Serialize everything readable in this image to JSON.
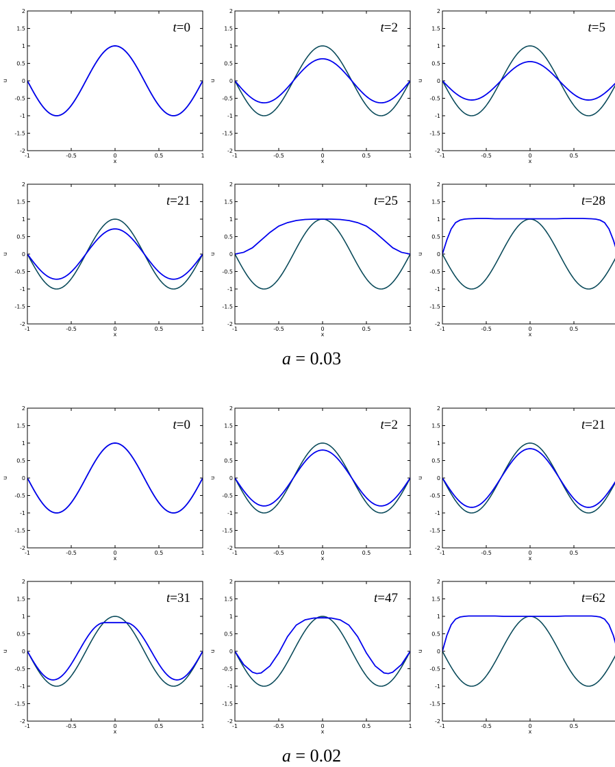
{
  "figure": {
    "groups": [
      {
        "caption_var": "a",
        "caption_value": "0.03"
      },
      {
        "caption_var": "a",
        "caption_value": "0.02"
      }
    ]
  },
  "chart_data": [
    {
      "type": "line",
      "group": 0,
      "time_label": "t=0",
      "xlabel": "x",
      "ylabel": "u",
      "xlim": [
        -1,
        1
      ],
      "ylim": [
        -2,
        2
      ],
      "xticks": [
        "-1",
        "-0.5",
        "0",
        "0.5",
        "1"
      ],
      "yticks": [
        "-2",
        "-1.5",
        "-1",
        "-0.5",
        "0",
        "0.5",
        "1",
        "1.5",
        "2"
      ],
      "series": [
        {
          "color": "#0a4a5a",
          "kind": "cosine",
          "amp": 1.0
        },
        {
          "color": "#0000ee",
          "kind": "cosine",
          "amp": 1.0
        }
      ]
    },
    {
      "type": "line",
      "group": 0,
      "time_label": "t=2",
      "xlabel": "x",
      "ylabel": "u",
      "xlim": [
        -1,
        1
      ],
      "ylim": [
        -2,
        2
      ],
      "xticks": [
        "-1",
        "-0.5",
        "0",
        "0.5",
        "1"
      ],
      "yticks": [
        "-2",
        "-1.5",
        "-1",
        "-0.5",
        "0",
        "0.5",
        "1",
        "1.5",
        "2"
      ],
      "series": [
        {
          "color": "#0a4a5a",
          "kind": "cosine",
          "amp": 1.0
        },
        {
          "color": "#0000ee",
          "kind": "cosine",
          "amp": 0.63
        }
      ]
    },
    {
      "type": "line",
      "group": 0,
      "time_label": "t=5",
      "xlabel": "x",
      "ylabel": "u",
      "xlim": [
        -1,
        1
      ],
      "ylim": [
        -2,
        2
      ],
      "xticks": [
        "-1",
        "-0.5",
        "0",
        "0.5",
        ""
      ],
      "yticks": [
        "-2",
        "-1.5",
        "-1",
        "-0.5",
        "0",
        "0.5",
        "1",
        "1.5",
        "2"
      ],
      "series": [
        {
          "color": "#0a4a5a",
          "kind": "cosine",
          "amp": 1.0
        },
        {
          "color": "#0000ee",
          "kind": "cosine",
          "amp": 0.55
        }
      ]
    },
    {
      "type": "line",
      "group": 0,
      "time_label": "t=21",
      "xlabel": "x",
      "ylabel": "u",
      "xlim": [
        -1,
        1
      ],
      "ylim": [
        -2,
        2
      ],
      "xticks": [
        "-1",
        "-0.5",
        "0",
        "0.5",
        "1"
      ],
      "yticks": [
        "-2",
        "-1.5",
        "-1",
        "-0.5",
        "0",
        "0.5",
        "1",
        "1.5",
        "2"
      ],
      "series": [
        {
          "color": "#0a4a5a",
          "kind": "cosine",
          "amp": 1.0
        },
        {
          "color": "#0000ee",
          "kind": "cosine",
          "amp": 0.72
        }
      ]
    },
    {
      "type": "line",
      "group": 0,
      "time_label": "t=25",
      "xlabel": "x",
      "ylabel": "u",
      "xlim": [
        -1,
        1
      ],
      "ylim": [
        -2,
        2
      ],
      "xticks": [
        "-1",
        "-0.5",
        "0",
        "0.5",
        "1"
      ],
      "yticks": [
        "-2",
        "-1.5",
        "-1",
        "-0.5",
        "0",
        "0.5",
        "1",
        "1.5",
        "2"
      ],
      "series": [
        {
          "color": "#0a4a5a",
          "kind": "cosine",
          "amp": 1.0
        },
        {
          "color": "#0000ee",
          "kind": "points",
          "x": [
            -1,
            -0.9,
            -0.8,
            -0.7,
            -0.6,
            -0.5,
            -0.4,
            -0.3,
            -0.2,
            -0.1,
            0,
            0.1,
            0.2,
            0.3,
            0.4,
            0.5,
            0.6,
            0.7,
            0.8,
            0.9,
            1
          ],
          "y": [
            0,
            0.05,
            0.18,
            0.4,
            0.62,
            0.8,
            0.9,
            0.96,
            0.99,
            1.0,
            1.0,
            1.0,
            0.99,
            0.96,
            0.9,
            0.8,
            0.62,
            0.4,
            0.18,
            0.05,
            0
          ]
        }
      ]
    },
    {
      "type": "line",
      "group": 0,
      "time_label": "t=28",
      "xlabel": "x",
      "ylabel": "u",
      "xlim": [
        -1,
        1
      ],
      "ylim": [
        -2,
        2
      ],
      "xticks": [
        "-1",
        "-0.5",
        "0",
        "0.5",
        ""
      ],
      "yticks": [
        "-2",
        "-1.5",
        "-1",
        "-0.5",
        "0",
        "0.5",
        "1",
        "1.5",
        "2"
      ],
      "series": [
        {
          "color": "#0a4a5a",
          "kind": "cosine",
          "amp": 1.0
        },
        {
          "color": "#0000ee",
          "kind": "points",
          "x": [
            -1,
            -0.95,
            -0.9,
            -0.85,
            -0.8,
            -0.75,
            -0.7,
            -0.6,
            -0.5,
            -0.4,
            -0.3,
            -0.2,
            -0.1,
            0,
            0.1,
            0.2,
            0.3,
            0.4,
            0.5,
            0.6,
            0.7,
            0.75,
            0.8,
            0.85,
            0.9,
            0.95,
            1
          ],
          "y": [
            0,
            0.4,
            0.72,
            0.9,
            0.97,
            1.0,
            1.01,
            1.02,
            1.02,
            1.01,
            1.01,
            1.01,
            1.01,
            1.01,
            1.01,
            1.01,
            1.01,
            1.02,
            1.02,
            1.02,
            1.01,
            1.0,
            0.97,
            0.9,
            0.72,
            0.4,
            0
          ]
        }
      ]
    },
    {
      "type": "line",
      "group": 1,
      "time_label": "t=0",
      "xlabel": "x",
      "ylabel": "u",
      "xlim": [
        -1,
        1
      ],
      "ylim": [
        -2,
        2
      ],
      "xticks": [
        "-1",
        "-0.5",
        "0",
        "0.5",
        "1"
      ],
      "yticks": [
        "-2",
        "-1.5",
        "-1",
        "-0.5",
        "0",
        "0.5",
        "1",
        "1.5",
        "2"
      ],
      "series": [
        {
          "color": "#0a4a5a",
          "kind": "cosine",
          "amp": 1.0
        },
        {
          "color": "#0000ee",
          "kind": "cosine",
          "amp": 1.0
        }
      ]
    },
    {
      "type": "line",
      "group": 1,
      "time_label": "t=2",
      "xlabel": "x",
      "ylabel": "u",
      "xlim": [
        -1,
        1
      ],
      "ylim": [
        -2,
        2
      ],
      "xticks": [
        "-1",
        "-0.5",
        "0",
        "0.5",
        "1"
      ],
      "yticks": [
        "-2",
        "-1.5",
        "-1",
        "-0.5",
        "0",
        "0.5",
        "1",
        "1.5",
        "2"
      ],
      "series": [
        {
          "color": "#0a4a5a",
          "kind": "cosine",
          "amp": 1.0
        },
        {
          "color": "#0000ee",
          "kind": "cosine",
          "amp": 0.8
        }
      ]
    },
    {
      "type": "line",
      "group": 1,
      "time_label": "t=21",
      "xlabel": "x",
      "ylabel": "u",
      "xlim": [
        -1,
        1
      ],
      "ylim": [
        -2,
        2
      ],
      "xticks": [
        "-1",
        "-0.5",
        "0",
        "0.5",
        ""
      ],
      "yticks": [
        "-2",
        "-1.5",
        "-1",
        "-0.5",
        "0",
        "0.5",
        "1",
        "1.5",
        "2"
      ],
      "series": [
        {
          "color": "#0a4a5a",
          "kind": "cosine",
          "amp": 1.0
        },
        {
          "color": "#0000ee",
          "kind": "cosine",
          "amp": 0.84
        }
      ]
    },
    {
      "type": "line",
      "group": 1,
      "time_label": "t=31",
      "xlabel": "x",
      "ylabel": "u",
      "xlim": [
        -1,
        1
      ],
      "ylim": [
        -2,
        2
      ],
      "xticks": [
        "-1",
        "-0.5",
        "0",
        "0.5",
        "1"
      ],
      "yticks": [
        "-2",
        "-1.5",
        "-1",
        "-0.5",
        "0",
        "0.5",
        "1",
        "1.5",
        "2"
      ],
      "series": [
        {
          "color": "#0a4a5a",
          "kind": "cosine",
          "amp": 1.0
        },
        {
          "color": "#0000ee",
          "kind": "cosine",
          "amp": 0.82,
          "phase": 0.12
        }
      ]
    },
    {
      "type": "line",
      "group": 1,
      "time_label": "t=47",
      "xlabel": "x",
      "ylabel": "u",
      "xlim": [
        -1,
        1
      ],
      "ylim": [
        -2,
        2
      ],
      "xticks": [
        "-1",
        "-0.5",
        "0",
        "0.5",
        "1"
      ],
      "yticks": [
        "-2",
        "-1.5",
        "-1",
        "-0.5",
        "0",
        "0.5",
        "1",
        "1.5",
        "2"
      ],
      "series": [
        {
          "color": "#0a4a5a",
          "kind": "cosine",
          "amp": 1.0
        },
        {
          "color": "#0000ee",
          "kind": "points",
          "x": [
            -1,
            -0.9,
            -0.8,
            -0.75,
            -0.7,
            -0.6,
            -0.5,
            -0.4,
            -0.3,
            -0.2,
            -0.1,
            0,
            0.1,
            0.2,
            0.3,
            0.4,
            0.5,
            0.6,
            0.7,
            0.75,
            0.8,
            0.9,
            1
          ],
          "y": [
            0,
            -0.38,
            -0.6,
            -0.64,
            -0.62,
            -0.42,
            -0.05,
            0.42,
            0.75,
            0.9,
            0.95,
            0.96,
            0.95,
            0.9,
            0.75,
            0.42,
            -0.05,
            -0.42,
            -0.62,
            -0.64,
            -0.6,
            -0.38,
            0
          ]
        }
      ]
    },
    {
      "type": "line",
      "group": 1,
      "time_label": "t=62",
      "xlabel": "x",
      "ylabel": "u",
      "xlim": [
        -1,
        1
      ],
      "ylim": [
        -2,
        2
      ],
      "xticks": [
        "-1",
        "-0.5",
        "0",
        "0.5",
        ""
      ],
      "yticks": [
        "-2",
        "-1.5",
        "-1",
        "-0.5",
        "0",
        "0.5",
        "1",
        "1.5",
        "2"
      ],
      "series": [
        {
          "color": "#0a4a5a",
          "kind": "cosine",
          "amp": 1.0
        },
        {
          "color": "#0000ee",
          "kind": "points",
          "x": [
            -1,
            -0.95,
            -0.9,
            -0.85,
            -0.8,
            -0.75,
            -0.7,
            -0.6,
            -0.5,
            -0.4,
            -0.3,
            -0.2,
            -0.1,
            0,
            0.1,
            0.2,
            0.3,
            0.4,
            0.5,
            0.6,
            0.7,
            0.75,
            0.8,
            0.85,
            0.9,
            0.95,
            1
          ],
          "y": [
            0,
            0.45,
            0.76,
            0.92,
            0.98,
            1.0,
            1.01,
            1.01,
            1.01,
            1.01,
            1.0,
            1.0,
            1.0,
            1.0,
            1.0,
            1.0,
            1.0,
            1.01,
            1.01,
            1.01,
            1.01,
            1.0,
            0.98,
            0.92,
            0.76,
            0.45,
            0
          ]
        }
      ]
    }
  ]
}
